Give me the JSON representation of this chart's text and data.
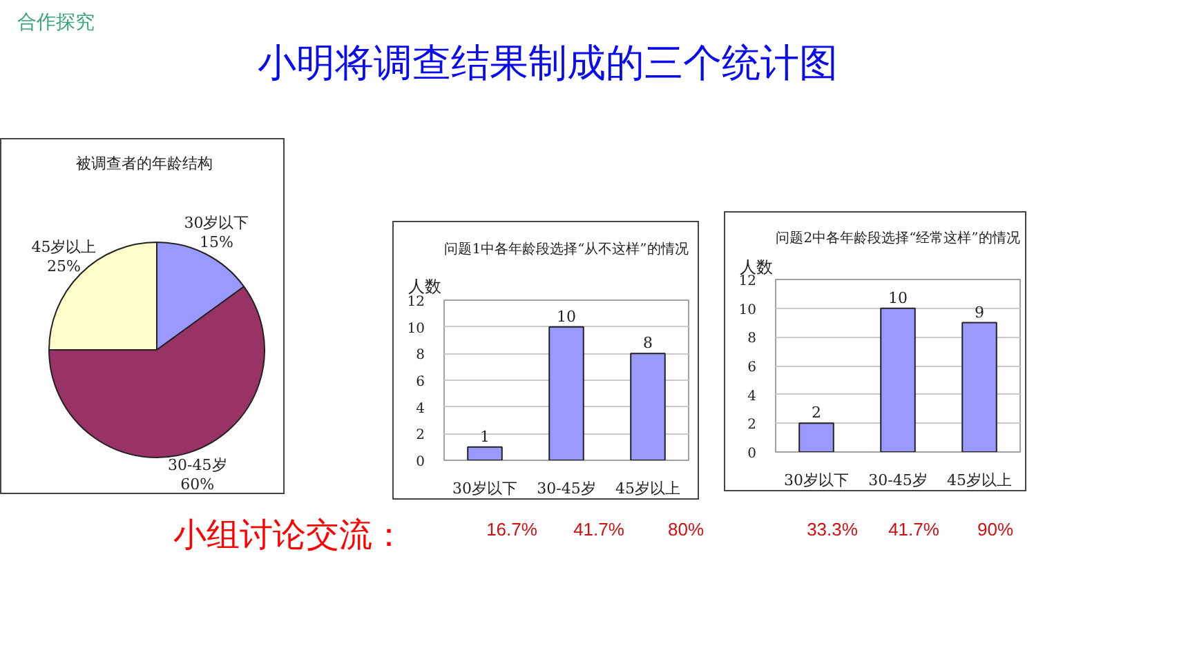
{
  "chart_data": [
    {
      "type": "pie",
      "title": "被调查者的年龄结构",
      "categories": [
        "30岁以下",
        "30-45岁",
        "45岁以上"
      ],
      "values": [
        15,
        60,
        25
      ],
      "colors": [
        "#9999ff",
        "#993366",
        "#ffffcc"
      ],
      "value_labels": [
        "15%",
        "60%",
        "25%"
      ],
      "annotations": [
        "合作探究",
        "小明将调查结果制成的三个统计图",
        "小组讨论交流："
      ]
    },
    {
      "type": "bar",
      "title": "问题1中各年龄段选择“从不这样”的情况",
      "ylabel": "人数",
      "categories": [
        "30岁以下",
        "30-45岁",
        "45岁以上"
      ],
      "values": [
        1,
        10,
        8
      ],
      "color": "#9999ff",
      "data_labels": true,
      "ylim": [
        0,
        12
      ],
      "yticks": [
        0,
        2,
        4,
        6,
        8,
        10,
        12
      ],
      "grid": "y",
      "annotations": [
        "16.7%",
        "41.7%",
        "80%"
      ]
    },
    {
      "type": "bar",
      "title": "问题2中各年龄段选择“经常这样”的情况",
      "ylabel": "人数",
      "categories": [
        "30岁以下",
        "30-45岁",
        "45岁以上"
      ],
      "values": [
        2,
        10,
        9
      ],
      "color": "#9999ff",
      "data_labels": true,
      "ylim": [
        0,
        12
      ],
      "yticks": [
        0,
        2,
        4,
        6,
        8,
        10,
        12
      ],
      "grid": "y",
      "annotations": [
        "33.3%",
        "41.7%",
        "90%"
      ]
    }
  ]
}
